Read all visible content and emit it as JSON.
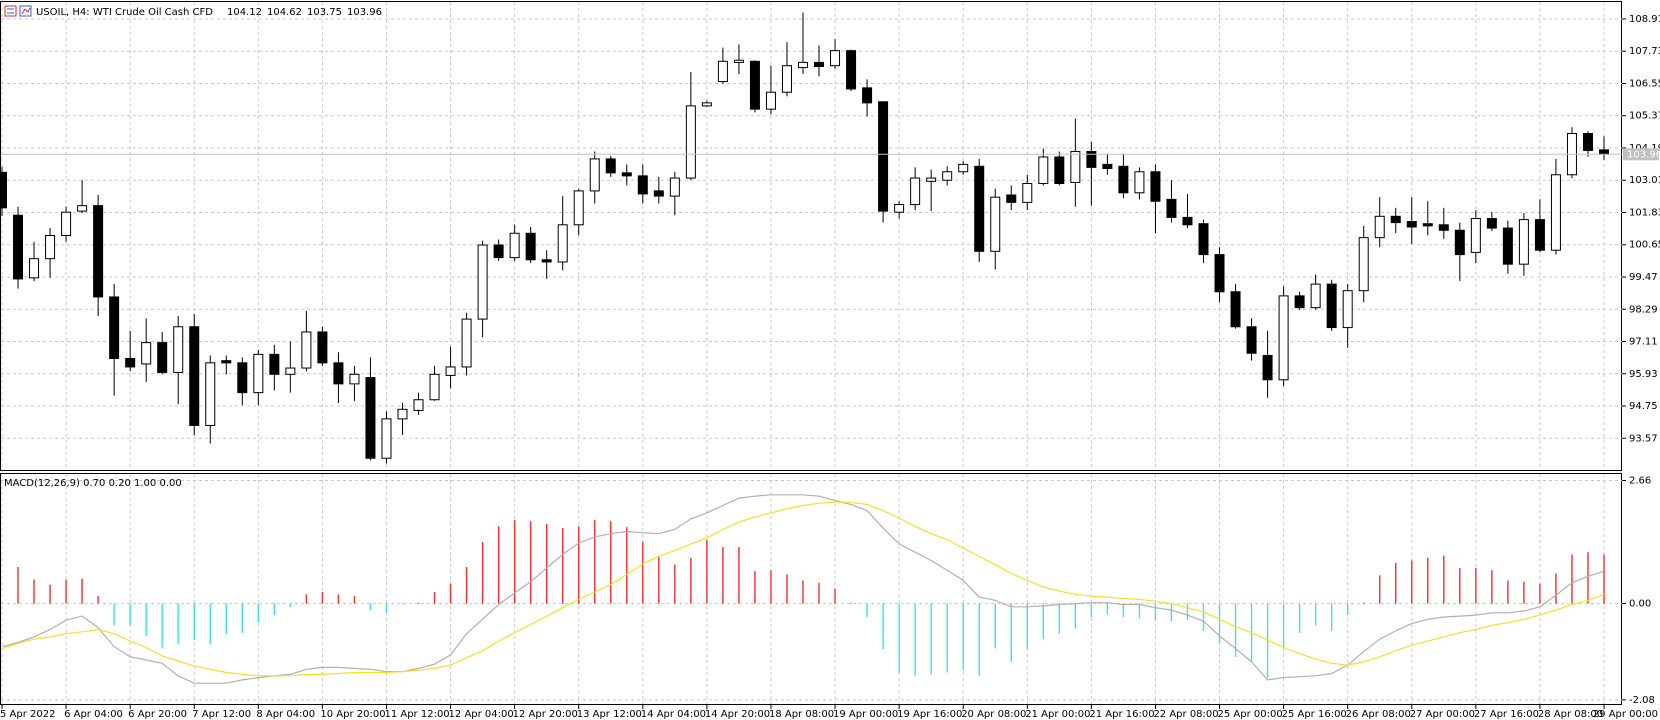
{
  "chart_data": [
    {
      "type": "candlestick",
      "title": "USOIL, H4:  WTI Crude Oil Cash CFD",
      "categories": [
        "5 Apr 2022",
        null,
        null,
        null,
        "6 Apr 04:00",
        null,
        null,
        null,
        "6 Apr 20:00",
        null,
        null,
        null,
        "7 Apr 12:00",
        null,
        null,
        null,
        "8 Apr 04:00",
        null,
        null,
        null,
        "10 Apr 20:00",
        null,
        null,
        null,
        "11 Apr 12:00",
        null,
        null,
        null,
        "12 Apr 04:00",
        null,
        null,
        null,
        "12 Apr 20:00",
        null,
        null,
        null,
        "13 Apr 12:00",
        null,
        null,
        null,
        "14 Apr 04:00",
        null,
        null,
        null,
        "14 Apr 20:00",
        null,
        null,
        null,
        "18 Apr 08:00",
        null,
        null,
        null,
        "19 Apr 00:00",
        null,
        null,
        null,
        "19 Apr 16:00",
        null,
        null,
        null,
        "20 Apr 08:00",
        null,
        null,
        null,
        "21 Apr 00:00",
        null,
        null,
        null,
        "21 Apr 16:00",
        null,
        null,
        null,
        "22 Apr 08:00",
        null,
        null,
        null,
        "25 Apr 00:00",
        null,
        null,
        null,
        "25 Apr 16:00",
        null,
        null,
        null,
        "26 Apr 08:00",
        null,
        null,
        null,
        "27 Apr 00:00",
        null,
        null,
        null,
        "27 Apr 16:00",
        null,
        null,
        null,
        "28 Apr 08:00",
        null,
        null,
        null,
        "29 Apr 00:00"
      ],
      "open": [
        103.3,
        101.73,
        99.44,
        100.14,
        100.99,
        101.88,
        102.08,
        98.74,
        96.49,
        96.29,
        97.07,
        95.98,
        97.65,
        94.04,
        96.41,
        96.33,
        95.24,
        96.64,
        95.91,
        96.14,
        97.46,
        96.33,
        95.56,
        95.79,
        92.84,
        94.28,
        94.59,
        94.98,
        95.87,
        96.18,
        97.93,
        100.64,
        100.18,
        101.07,
        100.1,
        100.02,
        101.38,
        102.62,
        103.79,
        103.28,
        103.17,
        102.62,
        102.43,
        103.09,
        105.73,
        106.62,
        107.32,
        107.36,
        105.61,
        106.23,
        107.13,
        107.32,
        107.2,
        107.75,
        106.39,
        105.88,
        101.84,
        102.12,
        102.97,
        103.01,
        103.32,
        103.52,
        100.41,
        102.47,
        102.2,
        102.89,
        103.86,
        102.93,
        104.06,
        103.59,
        103.52,
        102.55,
        103.32,
        102.31,
        101.65,
        101.42,
        100.29,
        98.93,
        97.65,
        96.6,
        95.71,
        98.78,
        98.35,
        99.21,
        97.62,
        98.97,
        100.91,
        101.69,
        101.5,
        101.42,
        101.38,
        101.18,
        100.37,
        101.61,
        101.26,
        99.94,
        101.57,
        100.45,
        103.21,
        104.72,
        104.12
      ],
      "high": [
        103.5,
        102.04,
        100.76,
        101.26,
        102.04,
        103.01,
        102.47,
        99.21,
        97.5,
        97.96,
        97.46,
        98.04,
        98.12,
        96.6,
        96.6,
        96.53,
        96.8,
        96.99,
        97.11,
        98.23,
        97.65,
        96.72,
        96.22,
        96.53,
        94.55,
        94.86,
        95.24,
        96.22,
        96.92,
        98.16,
        100.8,
        100.84,
        101.38,
        101.3,
        100.45,
        102.43,
        102.7,
        104.06,
        103.9,
        103.59,
        103.59,
        103.13,
        103.32,
        106.97,
        105.92,
        107.86,
        107.98,
        107.4,
        107.2,
        108.06,
        109.14,
        107.94,
        108.17,
        107.79,
        106.7,
        105.88,
        102.24,
        103.48,
        103.4,
        103.52,
        103.71,
        103.79,
        102.7,
        102.82,
        103.21,
        104.17,
        104.06,
        105.26,
        104.41,
        103.98,
        103.98,
        103.48,
        103.59,
        103.01,
        102.51,
        101.57,
        100.56,
        99.21,
        97.96,
        97.5,
        99.13,
        98.93,
        99.56,
        99.37,
        99.21,
        101.34,
        102.39,
        102.0,
        102.39,
        102.24,
        102.0,
        101.46,
        101.92,
        101.85,
        101.53,
        101.81,
        102.31,
        103.79,
        104.95,
        104.8,
        104.62
      ],
      "low": [
        101.7,
        99.05,
        99.32,
        99.44,
        100.76,
        101.81,
        98.04,
        95.13,
        96.02,
        95.63,
        95.91,
        94.82,
        93.69,
        93.38,
        95.91,
        94.78,
        94.78,
        95.32,
        95.24,
        96.02,
        96.22,
        94.86,
        94.94,
        92.76,
        92.65,
        93.69,
        94.43,
        94.94,
        95.4,
        95.87,
        97.27,
        100.06,
        100.06,
        99.98,
        99.4,
        99.71,
        100.99,
        102.16,
        103.13,
        102.82,
        102.16,
        102.16,
        101.73,
        103.01,
        105.69,
        106.54,
        106.89,
        105.49,
        105.42,
        106.08,
        106.89,
        106.81,
        107.09,
        106.27,
        105.34,
        101.46,
        101.61,
        101.92,
        101.88,
        102.82,
        103.21,
        100.02,
        99.75,
        101.92,
        101.92,
        102.82,
        102.82,
        102.04,
        102.08,
        103.21,
        102.35,
        102.31,
        101.07,
        101.46,
        101.26,
        99.98,
        98.55,
        97.58,
        96.41,
        95.05,
        95.48,
        98.27,
        98.27,
        97.5,
        96.88,
        98.55,
        100.56,
        101.07,
        100.68,
        100.99,
        100.87,
        99.32,
        99.98,
        101.15,
        99.59,
        99.52,
        100.37,
        100.29,
        103.09,
        103.87,
        103.75
      ],
      "close": [
        102.0,
        99.4,
        100.14,
        100.99,
        101.84,
        102.08,
        98.74,
        96.49,
        96.18,
        97.07,
        95.98,
        97.65,
        94.04,
        96.33,
        96.33,
        95.24,
        96.64,
        95.91,
        96.14,
        97.46,
        96.33,
        95.56,
        95.91,
        92.84,
        94.28,
        94.63,
        94.98,
        95.91,
        96.18,
        97.93,
        100.64,
        100.18,
        101.07,
        100.1,
        100.02,
        101.38,
        102.62,
        103.79,
        103.28,
        103.17,
        102.51,
        102.43,
        103.09,
        105.73,
        105.84,
        107.36,
        107.4,
        105.61,
        106.23,
        107.2,
        107.32,
        107.17,
        107.75,
        106.35,
        105.84,
        101.88,
        102.12,
        103.09,
        103.09,
        103.32,
        103.59,
        100.41,
        102.39,
        102.2,
        102.89,
        103.86,
        102.89,
        104.06,
        103.48,
        103.44,
        102.55,
        103.32,
        102.24,
        101.65,
        101.38,
        100.29,
        98.93,
        97.65,
        96.68,
        95.71,
        98.78,
        98.35,
        99.21,
        97.62,
        98.97,
        100.91,
        101.69,
        101.46,
        101.3,
        101.34,
        101.18,
        100.29,
        101.61,
        101.26,
        99.94,
        101.57,
        100.45,
        103.21,
        104.72,
        104.1,
        103.96
      ],
      "ylim": [
        92.41,
        109.53
      ],
      "yticks": [
        93.57,
        94.75,
        95.93,
        97.11,
        98.29,
        99.47,
        100.65,
        101.83,
        103.01,
        104.19,
        105.37,
        106.55,
        107.73,
        108.91
      ],
      "grid": true,
      "bull_color": "#ffffff",
      "bear_color": "#000000",
      "outline_color": "#000000",
      "price_line_color": "#c0c0c0"
    },
    {
      "type": "macd",
      "title": "MACD(12,26,9) 0.70 0.20 1.00 0.00",
      "histogram": {
        "positive_color": "#ff2a2a",
        "negative_color": "#3ee0e8",
        "values": [
          null,
          0.79,
          0.52,
          0.41,
          0.52,
          0.54,
          0.16,
          -0.47,
          -0.47,
          -0.7,
          -0.97,
          -0.88,
          -0.79,
          -0.88,
          -0.65,
          -0.63,
          -0.41,
          -0.25,
          -0.07,
          0.2,
          0.25,
          0.2,
          0.16,
          -0.14,
          -0.2,
          -0.02,
          0.02,
          0.25,
          0.43,
          0.79,
          1.33,
          1.67,
          1.81,
          1.78,
          1.72,
          1.63,
          1.67,
          1.81,
          1.78,
          1.65,
          1.33,
          1.02,
          0.84,
          0.99,
          1.38,
          1.22,
          1.22,
          0.7,
          0.72,
          0.63,
          0.5,
          0.45,
          0.32,
          0.02,
          -0.29,
          -0.99,
          -1.49,
          -1.56,
          -1.53,
          -1.49,
          -1.44,
          -1.56,
          -0.97,
          -1.26,
          -0.97,
          -0.77,
          -0.65,
          -0.54,
          -0.29,
          -0.23,
          -0.29,
          -0.32,
          -0.36,
          -0.38,
          -0.36,
          -0.59,
          -0.86,
          -1.15,
          -1.26,
          -1.6,
          -0.95,
          -0.63,
          -0.47,
          -0.59,
          -0.25,
          0.02,
          0.61,
          0.88,
          0.93,
          0.99,
          1.04,
          0.77,
          0.77,
          0.72,
          0.5,
          0.47,
          0.43,
          0.65,
          1.06,
          1.11,
          1.06
        ]
      },
      "series": [
        {
          "color": "#b0b0b0",
          "values": [
            -0.93,
            -0.84,
            -0.72,
            -0.56,
            -0.36,
            -0.27,
            -0.52,
            -0.93,
            -1.15,
            -1.22,
            -1.29,
            -1.56,
            -1.72,
            -1.72,
            -1.72,
            -1.65,
            -1.6,
            -1.56,
            -1.53,
            -1.42,
            -1.38,
            -1.38,
            -1.4,
            -1.42,
            -1.47,
            -1.47,
            -1.4,
            -1.31,
            -1.11,
            -0.65,
            -0.34,
            -0.02,
            0.23,
            0.47,
            0.77,
            1.06,
            1.31,
            1.44,
            1.51,
            1.56,
            1.53,
            1.51,
            1.6,
            1.83,
            1.96,
            2.12,
            2.28,
            2.32,
            2.35,
            2.35,
            2.35,
            2.32,
            2.23,
            2.14,
            2.01,
            1.63,
            1.29,
            1.11,
            0.93,
            0.72,
            0.5,
            0.14,
            0.07,
            -0.07,
            -0.07,
            -0.05,
            -0.02,
            0.0,
            0.02,
            0.02,
            -0.02,
            -0.02,
            -0.09,
            -0.14,
            -0.25,
            -0.38,
            -0.7,
            -0.97,
            -1.26,
            -1.65,
            -1.6,
            -1.58,
            -1.56,
            -1.51,
            -1.33,
            -1.04,
            -0.77,
            -0.59,
            -0.43,
            -0.34,
            -0.29,
            -0.27,
            -0.25,
            -0.2,
            -0.2,
            -0.16,
            -0.07,
            0.18,
            0.45,
            0.59,
            0.7
          ]
        },
        {
          "color": "#f2e22a",
          "values": [
            -0.97,
            -0.86,
            -0.77,
            -0.72,
            -0.65,
            -0.61,
            -0.56,
            -0.65,
            -0.81,
            -0.95,
            -1.13,
            -1.24,
            -1.35,
            -1.42,
            -1.49,
            -1.53,
            -1.56,
            -1.56,
            -1.56,
            -1.53,
            -1.53,
            -1.51,
            -1.49,
            -1.49,
            -1.49,
            -1.47,
            -1.44,
            -1.4,
            -1.33,
            -1.17,
            -1.02,
            -0.81,
            -0.63,
            -0.45,
            -0.27,
            -0.09,
            0.09,
            0.25,
            0.41,
            0.63,
            0.86,
            1.02,
            1.15,
            1.29,
            1.42,
            1.6,
            1.76,
            1.87,
            1.96,
            2.05,
            2.12,
            2.17,
            2.19,
            2.19,
            2.14,
            2.01,
            1.85,
            1.67,
            1.51,
            1.38,
            1.2,
            1.02,
            0.84,
            0.65,
            0.5,
            0.36,
            0.27,
            0.2,
            0.16,
            0.14,
            0.11,
            0.09,
            0.05,
            0.0,
            -0.09,
            -0.18,
            -0.34,
            -0.5,
            -0.63,
            -0.79,
            -0.95,
            -1.08,
            -1.2,
            -1.29,
            -1.33,
            -1.26,
            -1.15,
            -1.02,
            -0.9,
            -0.81,
            -0.72,
            -0.63,
            -0.56,
            -0.47,
            -0.41,
            -0.34,
            -0.25,
            -0.14,
            -0.02,
            0.07,
            0.2
          ]
        }
      ],
      "ylim": [
        -2.17,
        2.8
      ],
      "yticks": [
        -2.08,
        {
          "value": 0,
          "label": "0.00"
        },
        2.66
      ],
      "grid": true
    }
  ]
}
